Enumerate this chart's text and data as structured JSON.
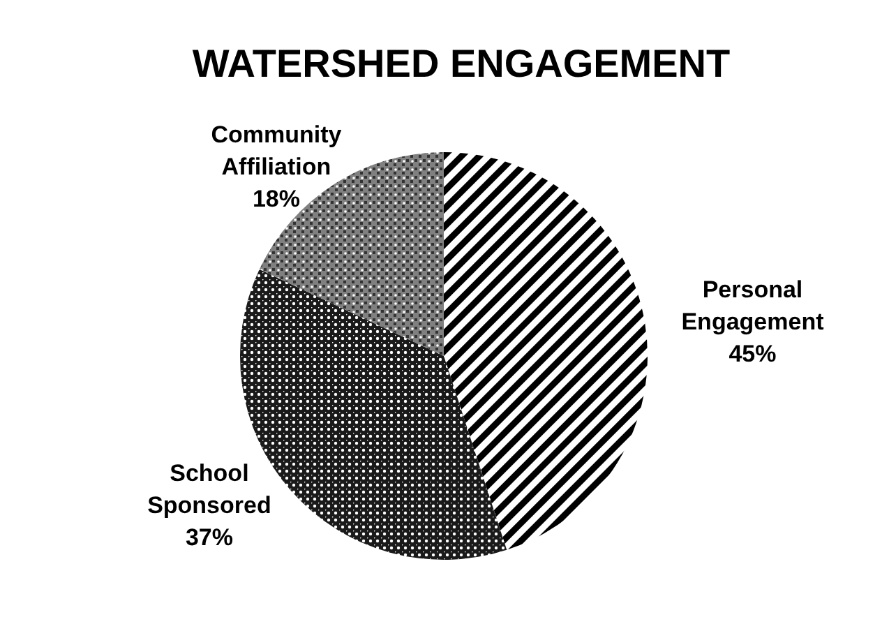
{
  "chart_data": {
    "type": "pie",
    "title": "WATERSHED ENGAGEMENT",
    "categories": [
      "Personal Engagement",
      "School Sponsored",
      "Community Affiliation"
    ],
    "values": [
      45,
      37,
      18
    ],
    "value_labels": [
      "45%",
      "37%",
      "18%"
    ],
    "colors": [
      "#000000",
      "#1a1a1a",
      "#808080"
    ]
  }
}
